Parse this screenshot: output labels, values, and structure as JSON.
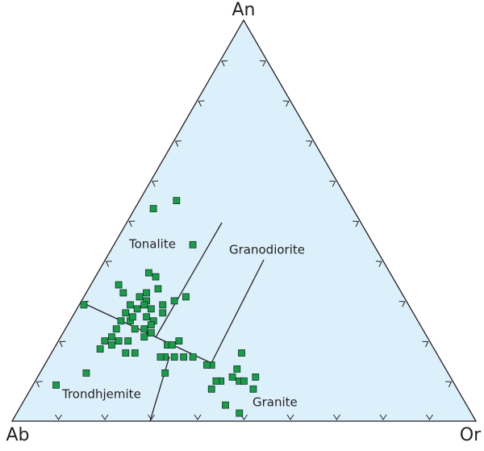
{
  "chart_data": {
    "type": "ternary",
    "vertices": {
      "top": "An",
      "left": "Ab",
      "right": "Or"
    },
    "ticks": [
      10,
      20,
      30,
      40,
      50,
      60,
      70,
      80,
      90
    ],
    "fields": [
      "Tonalite",
      "Granodiorite",
      "Trondhjemite",
      "Granite"
    ],
    "series": [
      {
        "color": "#1e9a4c",
        "an": [
          55,
          53,
          44,
          29,
          34,
          32,
          37,
          36,
          33,
          32,
          30,
          29,
          29,
          27,
          25,
          25,
          28,
          28,
          26,
          25,
          29,
          30,
          31,
          23,
          21,
          20,
          18,
          19,
          20,
          20,
          17,
          17,
          21,
          22,
          23,
          23,
          19,
          19,
          20,
          16,
          16,
          16,
          14,
          12,
          9,
          12,
          17,
          13,
          11,
          10,
          11,
          8,
          10,
          10,
          10,
          8,
          4,
          2,
          27,
          26,
          31,
          16,
          16,
          14,
          24
        ],
        "or": [
          8,
          4,
          17,
          1,
          6,
          8,
          11,
          13,
          15,
          13,
          14,
          14,
          11,
          11,
          11,
          13,
          13,
          16,
          16,
          18,
          18,
          20,
          22,
          11,
          11,
          10,
          10,
          12,
          13,
          15,
          16,
          18,
          18,
          19,
          17,
          15,
          24,
          25,
          26,
          25,
          27,
          31,
          36,
          10,
          5,
          27,
          41,
          42,
          42,
          44,
          47,
          48,
          45,
          40,
          39,
          39,
          44,
          48,
          19,
          13,
          12,
          24,
          29,
          35,
          18
        ],
        "ab": [
          37,
          43,
          39,
          70,
          60,
          60,
          52,
          51,
          52,
          55,
          56,
          57,
          60,
          62,
          64,
          62,
          59,
          56,
          58,
          57,
          53,
          50,
          47,
          66,
          68,
          70,
          72,
          69,
          67,
          65,
          67,
          65,
          61,
          59,
          60,
          62,
          57,
          56,
          54,
          59,
          57,
          53,
          50,
          78,
          86,
          61,
          42,
          45,
          47,
          46,
          42,
          44,
          45,
          50,
          51,
          53,
          52,
          50,
          54,
          61,
          57,
          60,
          55,
          51,
          58
        ]
      }
    ]
  }
}
